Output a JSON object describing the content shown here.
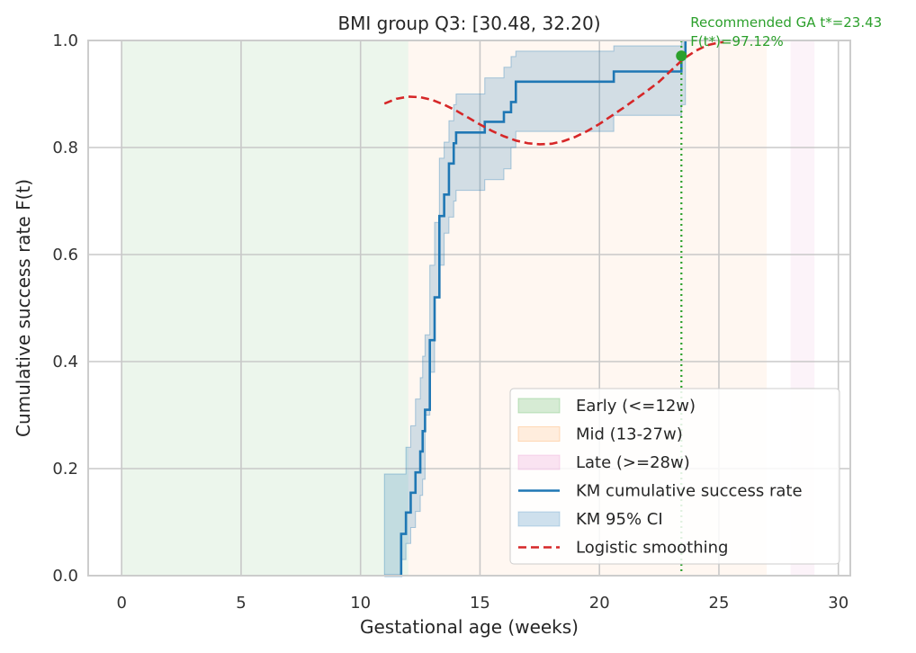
{
  "chart_data": {
    "type": "line",
    "title": "BMI group Q3: [30.48, 32.20)",
    "xlabel": "Gestational age (weeks)",
    "ylabel": "Cumulative success rate F(t)",
    "xlim": [
      -1.4,
      30.5
    ],
    "ylim": [
      0,
      1.0
    ],
    "xticks": [
      0,
      5,
      10,
      15,
      20,
      25,
      30
    ],
    "yticks": [
      0.0,
      0.2,
      0.4,
      0.6,
      0.8,
      1.0
    ],
    "xtick_labels": [
      "0",
      "5",
      "10",
      "15",
      "20",
      "25",
      "30"
    ],
    "ytick_labels": [
      "0.0",
      "0.2",
      "0.4",
      "0.6",
      "0.8",
      "1.0"
    ],
    "grid": true,
    "legend_position": "lower-right",
    "bands": [
      {
        "name": "Early (<=12w)",
        "x0": 0,
        "x1": 12,
        "color": "#2ca02c",
        "alpha": 0.09
      },
      {
        "name": "Mid (13-27w)",
        "x0": 12,
        "x1": 27,
        "color": "#ff7f0e",
        "alpha": 0.06
      },
      {
        "name": "Late (>=28w)",
        "x0": 28,
        "x1": 29,
        "color": "#e377c2",
        "alpha": 0.09
      }
    ],
    "series": [
      {
        "name": "KM cumulative success rate",
        "kind": "step",
        "color": "#1f77b4",
        "x": [
          11.0,
          11.7,
          11.9,
          12.1,
          12.3,
          12.5,
          12.6,
          12.7,
          12.9,
          13.1,
          13.3,
          13.5,
          13.7,
          13.9,
          14.0,
          15.2,
          16.0,
          16.3,
          16.5,
          20.6,
          23.43,
          23.6
        ],
        "y": [
          0.0,
          0.078,
          0.118,
          0.155,
          0.193,
          0.232,
          0.27,
          0.31,
          0.44,
          0.52,
          0.672,
          0.712,
          0.77,
          0.808,
          0.828,
          0.848,
          0.866,
          0.885,
          0.923,
          0.942,
          0.9712,
          1.0
        ]
      },
      {
        "name": "KM 95% CI",
        "kind": "band",
        "color": "#1f77b4",
        "x": [
          11.0,
          11.7,
          11.9,
          12.1,
          12.3,
          12.5,
          12.6,
          12.7,
          12.9,
          13.1,
          13.3,
          13.5,
          13.7,
          13.9,
          14.0,
          15.2,
          16.0,
          16.3,
          16.5,
          20.6,
          23.43,
          23.6
        ],
        "lower": [
          0.0,
          0.0,
          0.03,
          0.06,
          0.09,
          0.12,
          0.15,
          0.18,
          0.3,
          0.38,
          0.52,
          0.58,
          0.64,
          0.67,
          0.7,
          0.72,
          0.74,
          0.76,
          0.8,
          0.83,
          0.86,
          0.88
        ],
        "upper": [
          0.19,
          0.19,
          0.24,
          0.28,
          0.33,
          0.37,
          0.41,
          0.45,
          0.58,
          0.66,
          0.78,
          0.81,
          0.85,
          0.88,
          0.9,
          0.93,
          0.95,
          0.97,
          0.98,
          0.99,
          1.0,
          1.0
        ]
      },
      {
        "name": "Logistic smoothing",
        "kind": "line",
        "style": "dashed",
        "color": "#d62728",
        "x": [
          11.0,
          11.5,
          12.0,
          12.5,
          13.0,
          13.5,
          14.0,
          14.5,
          15.0,
          15.5,
          16.0,
          16.5,
          17.0,
          17.5,
          18.0,
          18.5,
          19.0,
          19.5,
          20.0,
          20.5,
          21.0,
          21.5,
          22.0,
          22.5,
          23.0,
          23.5,
          24.0,
          24.5,
          25.0,
          25.2
        ],
        "y": [
          0.882,
          0.891,
          0.895,
          0.894,
          0.889,
          0.88,
          0.869,
          0.856,
          0.843,
          0.831,
          0.821,
          0.813,
          0.808,
          0.806,
          0.807,
          0.812,
          0.82,
          0.831,
          0.844,
          0.859,
          0.874,
          0.89,
          0.906,
          0.923,
          0.944,
          0.965,
          0.98,
          0.991,
          0.996,
          0.997
        ]
      }
    ],
    "recommended": {
      "x": 23.43,
      "y": 0.9712,
      "color": "#2ca02c",
      "label_line1": "Recommended GA t*=23.43",
      "label_line2": "F(t*)=97.12%"
    }
  }
}
